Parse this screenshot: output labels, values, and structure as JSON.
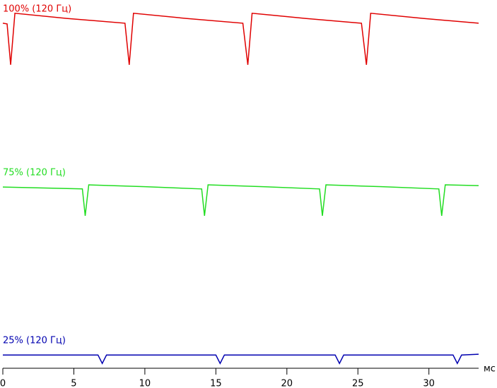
{
  "chart_data": {
    "type": "line",
    "x_label": "мс",
    "xlim": [
      0,
      33.5
    ],
    "xticks": [
      0,
      5,
      10,
      15,
      20,
      25,
      30
    ],
    "ylim": [
      0,
      100
    ],
    "series": [
      {
        "name": "100% (120 Гц)",
        "color": "#e00000",
        "x": [
          0,
          0.3,
          0.55,
          0.85,
          4.5,
          8.6,
          8.9,
          9.2,
          12.9,
          16.9,
          17.25,
          17.55,
          21.3,
          25.25,
          25.6,
          25.9,
          29.6,
          33.5
        ],
        "values": [
          93.7,
          93.5,
          82.4,
          96.4,
          95.0,
          93.7,
          82.4,
          96.4,
          95.0,
          93.7,
          82.4,
          96.4,
          95.0,
          93.7,
          82.4,
          96.4,
          95.0,
          93.7
        ]
      },
      {
        "name": "75% (120 Гц)",
        "color": "#22dd22",
        "x": [
          0,
          5.6,
          5.8,
          6.05,
          10,
          14.0,
          14.2,
          14.45,
          18.3,
          22.3,
          22.5,
          22.75,
          26.7,
          30.7,
          30.9,
          31.15,
          33.5
        ],
        "values": [
          49.2,
          48.7,
          41.4,
          49.8,
          49.3,
          48.7,
          41.4,
          49.8,
          49.3,
          48.7,
          41.4,
          49.8,
          49.3,
          48.7,
          41.4,
          49.8,
          49.6
        ]
      },
      {
        "name": "25% (120 Гц)",
        "color": "#0000b0",
        "x": [
          0,
          6.7,
          7.0,
          7.3,
          15.0,
          15.3,
          15.6,
          23.4,
          23.7,
          24.0,
          31.7,
          32.0,
          32.3,
          33.5
        ],
        "values": [
          3.6,
          3.6,
          1.3,
          3.6,
          3.6,
          1.3,
          3.6,
          3.6,
          1.3,
          3.6,
          3.6,
          1.3,
          3.6,
          3.8
        ]
      }
    ]
  }
}
